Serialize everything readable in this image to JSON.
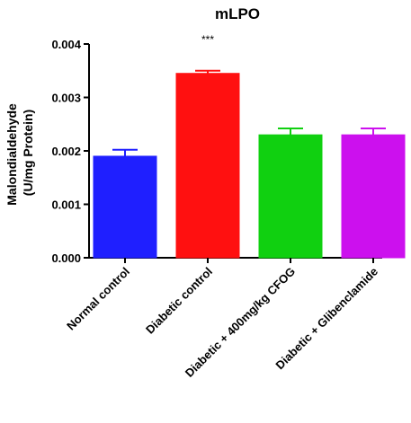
{
  "chart_data": {
    "type": "bar",
    "title": "mLPO",
    "ylabel_lines": [
      "Malondialdehyde",
      "(U/mg Protein)"
    ],
    "xlabel": "",
    "ylim": [
      0,
      0.004
    ],
    "yticks": [
      "0.000",
      "0.001",
      "0.002",
      "0.003",
      "0.004"
    ],
    "categories": [
      "Normal control",
      "Diabetic control",
      "Diabetic + 400mg/kg CFOG",
      "Diabetic + Glibenclamide"
    ],
    "values": [
      0.0019,
      0.00345,
      0.0023,
      0.0023
    ],
    "errors": [
      0.00012,
      5e-05,
      0.00012,
      0.00012
    ],
    "colors": [
      "#1f1fff",
      "#ff1010",
      "#10d010",
      "#cc10ee"
    ],
    "annotations": [
      {
        "category": "Diabetic control",
        "text": "***"
      }
    ],
    "grid": false,
    "legend": "none"
  }
}
